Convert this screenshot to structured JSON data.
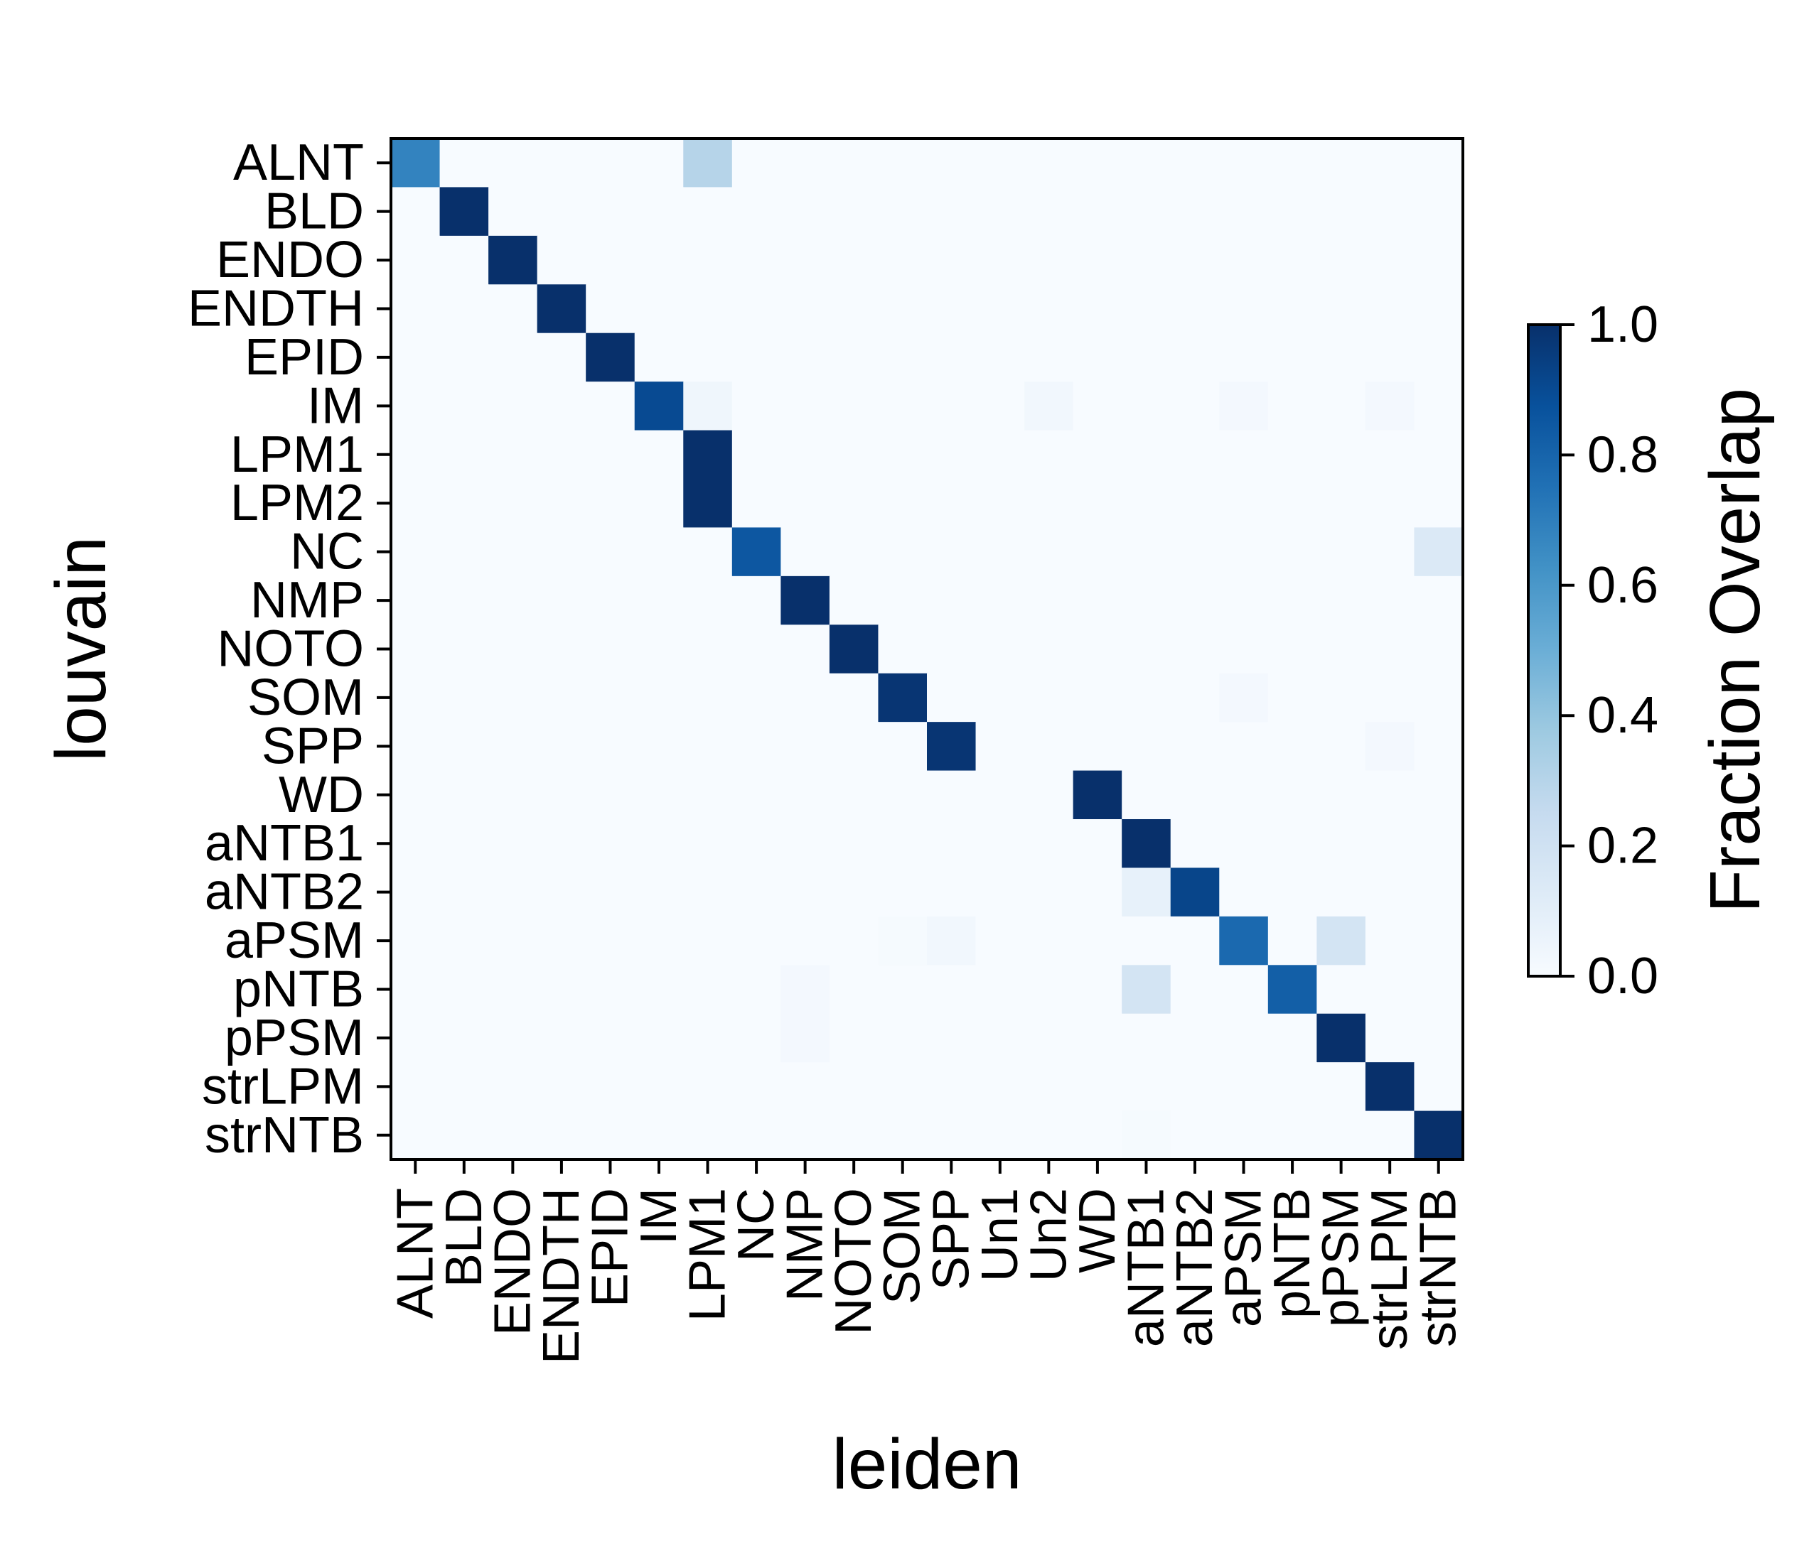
{
  "chart_data": {
    "type": "heatmap",
    "xlabel": "leiden",
    "ylabel": "louvain",
    "x_categories": [
      "ALNT",
      "BLD",
      "ENDO",
      "ENDTH",
      "EPID",
      "IM",
      "LPM1",
      "NC",
      "NMP",
      "NOTO",
      "SOM",
      "SPP",
      "Un1",
      "Un2",
      "WD",
      "aNTB1",
      "aNTB2",
      "aPSM",
      "pNTB",
      "pPSM",
      "strLPM",
      "strNTB"
    ],
    "y_categories": [
      "ALNT",
      "BLD",
      "ENDO",
      "ENDTH",
      "EPID",
      "IM",
      "LPM1",
      "LPM2",
      "NC",
      "NMP",
      "NOTO",
      "SOM",
      "SPP",
      "WD",
      "aNTB1",
      "aNTB2",
      "aPSM",
      "pNTB",
      "pPSM",
      "strLPM",
      "strNTB"
    ],
    "values": [
      [
        0.68,
        0,
        0,
        0,
        0,
        0,
        0.3,
        0,
        0,
        0,
        0,
        0,
        0,
        0,
        0,
        0,
        0,
        0,
        0,
        0,
        0,
        0
      ],
      [
        0,
        1,
        0,
        0,
        0,
        0,
        0,
        0,
        0,
        0,
        0,
        0,
        0,
        0,
        0,
        0,
        0,
        0,
        0,
        0,
        0,
        0
      ],
      [
        0,
        0,
        1,
        0,
        0,
        0,
        0,
        0,
        0,
        0,
        0,
        0,
        0,
        0,
        0,
        0,
        0,
        0,
        0,
        0,
        0,
        0
      ],
      [
        0,
        0,
        0,
        1,
        0,
        0,
        0,
        0,
        0,
        0,
        0,
        0,
        0,
        0,
        0,
        0,
        0,
        0,
        0,
        0,
        0,
        0
      ],
      [
        0,
        0,
        0,
        0,
        1,
        0,
        0,
        0,
        0,
        0,
        0,
        0,
        0,
        0,
        0,
        0,
        0,
        0,
        0,
        0,
        0,
        0
      ],
      [
        0,
        0,
        0,
        0,
        0,
        0.9,
        0.04,
        0,
        0,
        0,
        0,
        0,
        0,
        0.03,
        0,
        0,
        0,
        0.02,
        0,
        0,
        0.02,
        0
      ],
      [
        0,
        0,
        0,
        0,
        0,
        0,
        1,
        0,
        0,
        0,
        0,
        0,
        0,
        0,
        0,
        0,
        0,
        0,
        0,
        0,
        0,
        0
      ],
      [
        0,
        0,
        0,
        0,
        0,
        0,
        1,
        0,
        0,
        0,
        0,
        0,
        0,
        0,
        0,
        0,
        0,
        0,
        0,
        0,
        0,
        0
      ],
      [
        0,
        0,
        0,
        0,
        0,
        0,
        0,
        0.85,
        0,
        0,
        0,
        0,
        0,
        0,
        0,
        0,
        0,
        0,
        0,
        0,
        0,
        0.14
      ],
      [
        0,
        0,
        0,
        0,
        0,
        0,
        0,
        0,
        1,
        0,
        0,
        0,
        0,
        0,
        0,
        0,
        0,
        0,
        0,
        0,
        0,
        0
      ],
      [
        0,
        0,
        0,
        0,
        0,
        0,
        0,
        0,
        0,
        1,
        0,
        0,
        0,
        0,
        0,
        0,
        0,
        0,
        0,
        0,
        0,
        0
      ],
      [
        0,
        0,
        0,
        0,
        0,
        0,
        0,
        0,
        0,
        0,
        0.98,
        0,
        0,
        0,
        0,
        0,
        0,
        0.02,
        0,
        0,
        0,
        0
      ],
      [
        0,
        0,
        0,
        0,
        0,
        0,
        0,
        0,
        0,
        0,
        0,
        0.98,
        0,
        0,
        0,
        0,
        0,
        0,
        0,
        0,
        0.02,
        0
      ],
      [
        0,
        0,
        0,
        0,
        0,
        0,
        0,
        0,
        0,
        0,
        0,
        0,
        0,
        0,
        1,
        0,
        0,
        0,
        0,
        0,
        0,
        0
      ],
      [
        0,
        0,
        0,
        0,
        0,
        0,
        0,
        0,
        0,
        0,
        0,
        0,
        0,
        0,
        0,
        1,
        0,
        0,
        0,
        0,
        0,
        0
      ],
      [
        0,
        0,
        0,
        0,
        0,
        0,
        0,
        0,
        0,
        0,
        0,
        0,
        0,
        0,
        0,
        0.08,
        0.92,
        0,
        0,
        0,
        0,
        0
      ],
      [
        0,
        0,
        0,
        0,
        0,
        0,
        0,
        0,
        0,
        0,
        0.01,
        0.03,
        0,
        0,
        0,
        0,
        0,
        0.78,
        0,
        0.18,
        0,
        0
      ],
      [
        0,
        0,
        0,
        0,
        0,
        0,
        0,
        0,
        0.02,
        0,
        0,
        0,
        0,
        0,
        0,
        0.18,
        0,
        0,
        0.82,
        0,
        0,
        0
      ],
      [
        0,
        0,
        0,
        0,
        0,
        0,
        0,
        0,
        0.02,
        0,
        0,
        0,
        0,
        0,
        0,
        0,
        0,
        0,
        0,
        1,
        0,
        0
      ],
      [
        0,
        0,
        0,
        0,
        0,
        0,
        0,
        0,
        0,
        0,
        0,
        0,
        0,
        0,
        0,
        0,
        0,
        0,
        0,
        0,
        1,
        0
      ],
      [
        0,
        0,
        0,
        0,
        0,
        0,
        0,
        0,
        0,
        0,
        0,
        0,
        0,
        0,
        0,
        0.01,
        0,
        0,
        0,
        0,
        0,
        1
      ]
    ],
    "colorbar": {
      "label": "Fraction Overlap",
      "range": [
        0,
        1
      ],
      "ticks": [
        "0.0",
        "0.2",
        "0.4",
        "0.6",
        "0.8",
        "1.0"
      ],
      "colormap": "Blues"
    }
  }
}
